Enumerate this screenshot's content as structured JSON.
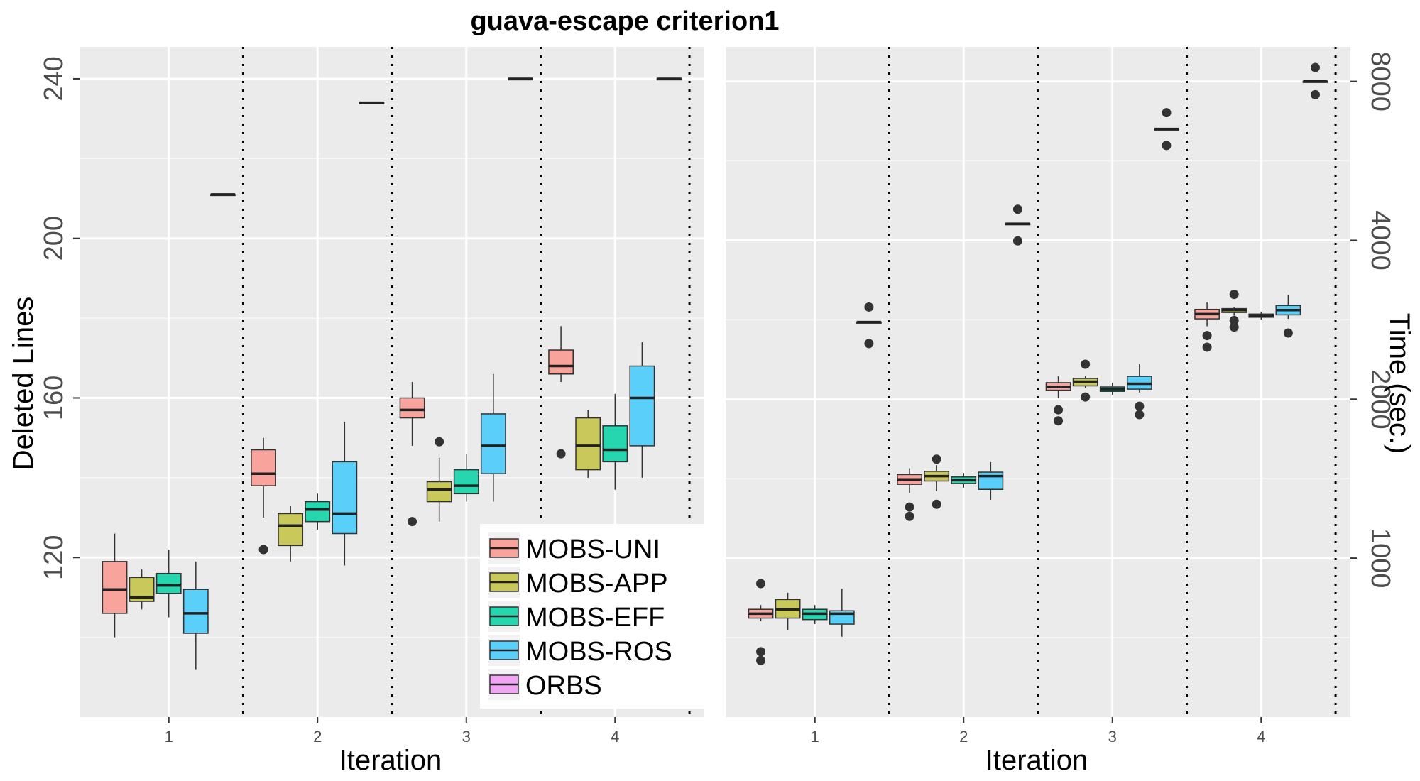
{
  "title": "guava-escape criterion1",
  "legend": [
    {
      "name": "MOBS-UNI",
      "color": "#F8A39B"
    },
    {
      "name": "MOBS-APP",
      "color": "#C8C95A"
    },
    {
      "name": "MOBS-EFF",
      "color": "#25D6AE"
    },
    {
      "name": "MOBS-ROS",
      "color": "#5ACFFA"
    },
    {
      "name": "ORBS",
      "color": "#F2A5F5"
    }
  ],
  "chart_data": [
    {
      "type": "box",
      "xlabel": "Iteration",
      "ylabel": "Deleted Lines",
      "categories": [
        "1",
        "2",
        "3",
        "4"
      ],
      "yticks": [
        120,
        160,
        200,
        240
      ],
      "ylim": [
        80,
        248
      ],
      "y_scale": "linear",
      "grid": true,
      "legend_position": "bottom-right",
      "series": [
        {
          "name": "MOBS-UNI",
          "boxes": [
            {
              "x": "1",
              "min": 100,
              "q1": 106,
              "median": 112,
              "q3": 119,
              "max": 126,
              "outliers": []
            },
            {
              "x": "2",
              "min": 130,
              "q1": 138,
              "median": 141,
              "q3": 147,
              "max": 150,
              "outliers": [
                122
              ]
            },
            {
              "x": "3",
              "min": 148,
              "q1": 155,
              "median": 157,
              "q3": 160,
              "max": 164,
              "outliers": [
                129
              ]
            },
            {
              "x": "4",
              "min": 164,
              "q1": 166,
              "median": 168,
              "q3": 172,
              "max": 178,
              "outliers": [
                146
              ]
            }
          ]
        },
        {
          "name": "MOBS-APP",
          "boxes": [
            {
              "x": "1",
              "min": 107,
              "q1": 109,
              "median": 110,
              "q3": 115,
              "max": 117,
              "outliers": []
            },
            {
              "x": "2",
              "min": 119,
              "q1": 123,
              "median": 128,
              "q3": 131,
              "max": 133,
              "outliers": []
            },
            {
              "x": "3",
              "min": 129,
              "q1": 134,
              "median": 137,
              "q3": 139,
              "max": 145,
              "outliers": [
                149
              ]
            },
            {
              "x": "4",
              "min": 140,
              "q1": 142,
              "median": 148,
              "q3": 155,
              "max": 157,
              "outliers": []
            }
          ]
        },
        {
          "name": "MOBS-EFF",
          "boxes": [
            {
              "x": "1",
              "min": 105,
              "q1": 111,
              "median": 113,
              "q3": 116,
              "max": 122,
              "outliers": []
            },
            {
              "x": "2",
              "min": 127,
              "q1": 129,
              "median": 132,
              "q3": 134,
              "max": 136,
              "outliers": []
            },
            {
              "x": "3",
              "min": 134,
              "q1": 136,
              "median": 138,
              "q3": 142,
              "max": 146,
              "outliers": []
            },
            {
              "x": "4",
              "min": 137,
              "q1": 144,
              "median": 147,
              "q3": 153,
              "max": 161,
              "outliers": []
            }
          ]
        },
        {
          "name": "MOBS-ROS",
          "boxes": [
            {
              "x": "1",
              "min": 92,
              "q1": 101,
              "median": 106,
              "q3": 112,
              "max": 119,
              "outliers": []
            },
            {
              "x": "2",
              "min": 118,
              "q1": 126,
              "median": 131,
              "q3": 144,
              "max": 154,
              "outliers": []
            },
            {
              "x": "3",
              "min": 134,
              "q1": 141,
              "median": 148,
              "q3": 156,
              "max": 166,
              "outliers": []
            },
            {
              "x": "4",
              "min": 140,
              "q1": 148,
              "median": 160,
              "q3": 168,
              "max": 174,
              "outliers": []
            }
          ]
        },
        {
          "name": "ORBS",
          "boxes": [
            {
              "x": "1",
              "min": 211,
              "q1": 211,
              "median": 211,
              "q3": 211,
              "max": 211,
              "outliers": []
            },
            {
              "x": "2",
              "min": 234,
              "q1": 234,
              "median": 234,
              "q3": 234,
              "max": 234,
              "outliers": []
            },
            {
              "x": "3",
              "min": 240,
              "q1": 240,
              "median": 240,
              "q3": 240,
              "max": 240,
              "outliers": []
            },
            {
              "x": "4",
              "min": 240,
              "q1": 240,
              "median": 240,
              "q3": 240,
              "max": 240,
              "outliers": []
            }
          ]
        }
      ]
    },
    {
      "type": "box",
      "xlabel": "Iteration",
      "ylabel": "Time (sec.)",
      "categories": [
        "1",
        "2",
        "3",
        "4"
      ],
      "yticks": [
        1000,
        2000,
        4000,
        8000
      ],
      "ylim": [
        500,
        9300
      ],
      "y_scale": "log",
      "y_axis_side": "right",
      "grid": true,
      "series": [
        {
          "name": "MOBS-UNI",
          "boxes": [
            {
              "x": "1",
              "min": 760,
              "q1": 770,
              "median": 785,
              "q3": 800,
              "max": 815,
              "outliers": [
                895,
                665,
                640
              ]
            },
            {
              "x": "2",
              "min": 1330,
              "q1": 1380,
              "median": 1410,
              "q3": 1440,
              "max": 1480,
              "outliers": [
                1250,
                1200
              ]
            },
            {
              "x": "3",
              "min": 2010,
              "q1": 2080,
              "median": 2110,
              "q3": 2150,
              "max": 2210,
              "outliers": [
                1910,
                1820
              ]
            },
            {
              "x": "4",
              "min": 2750,
              "q1": 2840,
              "median": 2900,
              "q3": 2960,
              "max": 3050,
              "outliers": [
                2640,
                2510
              ]
            }
          ]
        },
        {
          "name": "MOBS-APP",
          "boxes": [
            {
              "x": "1",
              "min": 730,
              "q1": 770,
              "median": 800,
              "q3": 835,
              "max": 860,
              "outliers": []
            },
            {
              "x": "2",
              "min": 1340,
              "q1": 1400,
              "median": 1430,
              "q3": 1460,
              "max": 1500,
              "outliers": [
                1540,
                1265
              ]
            },
            {
              "x": "3",
              "min": 2100,
              "q1": 2120,
              "median": 2160,
              "q3": 2190,
              "max": 2210,
              "outliers": [
                2330,
                2020
              ]
            },
            {
              "x": "4",
              "min": 2880,
              "q1": 2920,
              "median": 2950,
              "q3": 2970,
              "max": 2990,
              "outliers": [
                3160,
                2820,
                2740
              ]
            }
          ]
        },
        {
          "name": "MOBS-EFF",
          "boxes": [
            {
              "x": "1",
              "min": 750,
              "q1": 765,
              "median": 785,
              "q3": 800,
              "max": 815,
              "outliers": []
            },
            {
              "x": "2",
              "min": 1360,
              "q1": 1385,
              "median": 1405,
              "q3": 1425,
              "max": 1450,
              "outliers": []
            },
            {
              "x": "3",
              "min": 2040,
              "q1": 2070,
              "median": 2090,
              "q3": 2110,
              "max": 2150,
              "outliers": []
            },
            {
              "x": "4",
              "min": 2830,
              "q1": 2860,
              "median": 2880,
              "q3": 2900,
              "max": 2930,
              "outliers": []
            }
          ]
        },
        {
          "name": "MOBS-ROS",
          "boxes": [
            {
              "x": "1",
              "min": 710,
              "q1": 750,
              "median": 785,
              "q3": 795,
              "max": 875,
              "outliers": []
            },
            {
              "x": "2",
              "min": 1290,
              "q1": 1350,
              "median": 1430,
              "q3": 1455,
              "max": 1520,
              "outliers": []
            },
            {
              "x": "3",
              "min": 2060,
              "q1": 2090,
              "median": 2140,
              "q3": 2210,
              "max": 2330,
              "outliers": [
                1940,
                1870
              ]
            },
            {
              "x": "4",
              "min": 2840,
              "q1": 2890,
              "median": 2950,
              "q3": 3010,
              "max": 3150,
              "outliers": [
                2670
              ]
            }
          ]
        },
        {
          "name": "ORBS",
          "boxes": [
            {
              "x": "1",
              "min": 2800,
              "q1": 2800,
              "median": 2800,
              "q3": 2800,
              "max": 2800,
              "outliers": [
                2990,
                2550
              ]
            },
            {
              "x": "2",
              "min": 4300,
              "q1": 4300,
              "median": 4300,
              "q3": 4300,
              "max": 4300,
              "outliers": [
                4580,
                3990
              ]
            },
            {
              "x": "3",
              "min": 6500,
              "q1": 6500,
              "median": 6500,
              "q3": 6500,
              "max": 6500,
              "outliers": [
                6980,
                6050
              ]
            },
            {
              "x": "4",
              "min": 8000,
              "q1": 8000,
              "median": 8000,
              "q3": 8000,
              "max": 8000,
              "outliers": [
                8500,
                7550
              ]
            }
          ]
        }
      ]
    }
  ]
}
